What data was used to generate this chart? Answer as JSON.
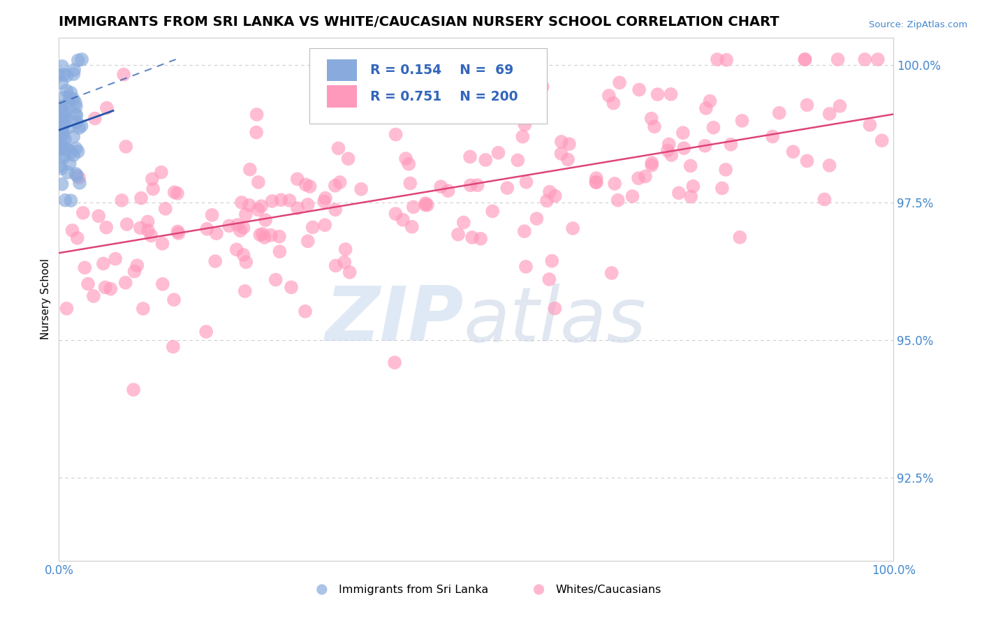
{
  "title": "IMMIGRANTS FROM SRI LANKA VS WHITE/CAUCASIAN NURSERY SCHOOL CORRELATION CHART",
  "source": "Source: ZipAtlas.com",
  "ylabel": "Nursery School",
  "xmin": 0.0,
  "xmax": 1.0,
  "ymin": 0.91,
  "ymax": 1.005,
  "yticks": [
    0.925,
    0.95,
    0.975,
    1.0
  ],
  "ytick_labels": [
    "92.5%",
    "95.0%",
    "97.5%",
    "100.0%"
  ],
  "xticks": [
    0.0,
    1.0
  ],
  "xtick_labels": [
    "0.0%",
    "100.0%"
  ],
  "R_blue": 0.154,
  "N_blue": 69,
  "R_pink": 0.751,
  "N_pink": 200,
  "blue_color": "#88AADD",
  "pink_color": "#FF99BB",
  "blue_line_color": "#2255AA",
  "pink_line_color": "#DD4477",
  "title_fontsize": 14,
  "axis_label_color": "#4488CC",
  "legend_color": "#3366BB",
  "watermark_zip_color": "#C5D8EE",
  "watermark_atlas_color": "#C8D5E5"
}
